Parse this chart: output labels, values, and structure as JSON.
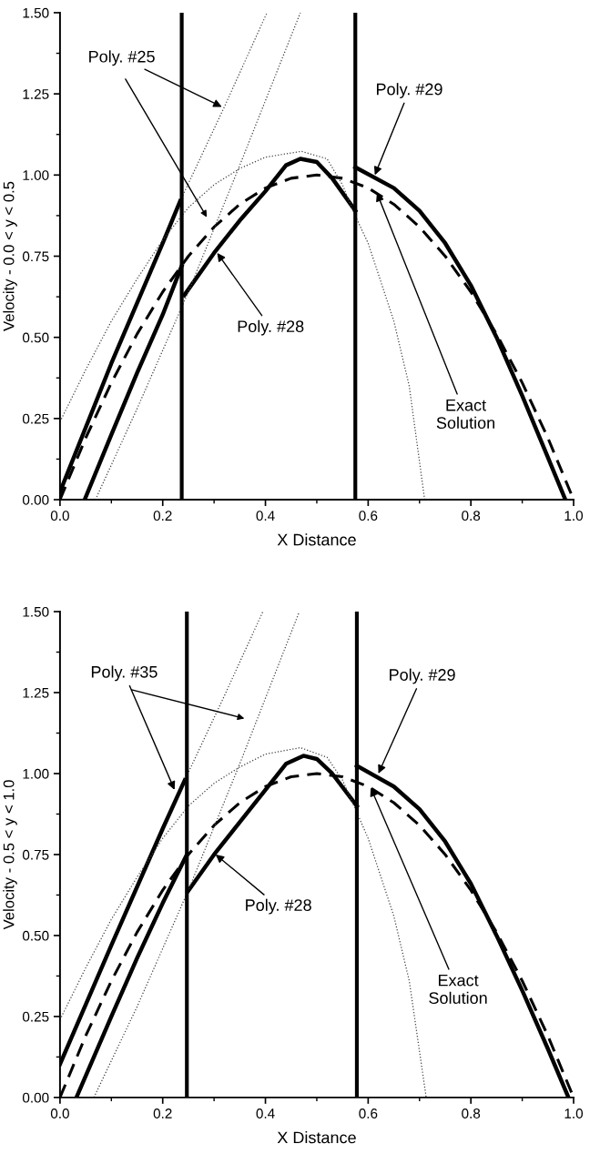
{
  "chart_data": [
    {
      "type": "line",
      "xlabel": "X Distance",
      "ylabel": "Velocity - 0.0 < y < 0.5",
      "xlim": [
        0,
        1
      ],
      "ylim": [
        0,
        1.5
      ],
      "xticks": [
        {
          "value": 0,
          "label": "0.0"
        },
        {
          "value": 0.2,
          "label": "0.2"
        },
        {
          "value": 0.4,
          "label": "0.4"
        },
        {
          "value": 0.6,
          "label": "0.6"
        },
        {
          "value": 0.8,
          "label": "0.8"
        },
        {
          "value": 1,
          "label": "1.0"
        }
      ],
      "yticks": [
        {
          "value": 0,
          "label": "0.00"
        },
        {
          "value": 0.25,
          "label": "0.25"
        },
        {
          "value": 0.5,
          "label": "0.50"
        },
        {
          "value": 0.75,
          "label": "0.75"
        },
        {
          "value": 1,
          "label": "1.00"
        },
        {
          "value": 1.25,
          "label": "1.25"
        },
        {
          "value": 1.5,
          "label": "1.50"
        }
      ],
      "grid": false,
      "legend": false,
      "marker": "none",
      "series": [
        {
          "color": "#000000",
          "line_style": "dashed",
          "x": [
            0,
            0.05,
            0.1,
            0.15,
            0.2,
            0.25,
            0.3,
            0.35,
            0.4,
            0.45,
            0.5,
            0.55,
            0.6,
            0.65,
            0.7,
            0.75,
            0.8,
            0.85,
            0.9,
            0.95,
            1
          ],
          "values": [
            0,
            0.19,
            0.36,
            0.51,
            0.64,
            0.75,
            0.84,
            0.91,
            0.96,
            0.99,
            1.0,
            0.99,
            0.96,
            0.91,
            0.84,
            0.75,
            0.64,
            0.51,
            0.36,
            0.19,
            0
          ]
        },
        {
          "color": "#000000",
          "line_style": "solid",
          "x": [
            0,
            0.1,
            0.2,
            0.234
          ],
          "values": [
            0.024,
            0.42,
            0.79,
            0.92
          ]
        },
        {
          "color": "#000000",
          "line_style": "solid",
          "x": [
            0.048,
            0.1,
            0.15,
            0.2,
            0.237
          ],
          "values": [
            0,
            0.2,
            0.39,
            0.57,
            0.72
          ]
        },
        {
          "color": "#000000",
          "line_style": "solid",
          "x": [
            0.242,
            0.3,
            0.35,
            0.4,
            0.44,
            0.468,
            0.5,
            0.53,
            0.575
          ],
          "values": [
            0.63,
            0.76,
            0.86,
            0.95,
            1.03,
            1.05,
            1.04,
            0.99,
            0.89
          ]
        },
        {
          "color": "#000000",
          "line_style": "solid",
          "x": [
            0.575,
            0.65,
            0.7,
            0.75,
            0.8,
            0.85,
            0.9,
            0.95,
            0.984
          ],
          "values": [
            1.024,
            0.96,
            0.89,
            0.79,
            0.66,
            0.5,
            0.32,
            0.13,
            0
          ]
        },
        {
          "color": "#444444",
          "line_style": "dotted",
          "x": [
            0.234,
            0.32,
            0.403
          ],
          "values": [
            0.92,
            1.21,
            1.5
          ]
        },
        {
          "color": "#444444",
          "line_style": "dotted",
          "x": [
            0.069,
            0.15,
            0.25,
            0.35,
            0.468
          ],
          "values": [
            0,
            0.28,
            0.64,
            1.03,
            1.5
          ]
        },
        {
          "color": "#444444",
          "line_style": "dotted",
          "x": [
            0,
            0.05,
            0.1,
            0.15,
            0.2,
            0.25,
            0.3,
            0.35,
            0.4,
            0.47,
            0.52,
            0.55,
            0.573,
            0.6,
            0.65,
            0.68,
            0.71
          ],
          "values": [
            0.24,
            0.4,
            0.55,
            0.68,
            0.8,
            0.9,
            0.97,
            1.02,
            1.055,
            1.073,
            1.05,
            0.97,
            0.88,
            0.79,
            0.55,
            0.35,
            0
          ]
        }
      ],
      "ref_lines": [
        {
          "axis": "x",
          "value": 0.237,
          "color": "#000000"
        },
        {
          "axis": "x",
          "value": 0.575,
          "color": "#000000"
        }
      ],
      "annotations": [
        {
          "text": "Poly. #25",
          "x": 0.315,
          "y": 1.21
        },
        {
          "text": "Poly. #29",
          "x": 0.613,
          "y": 1.0
        },
        {
          "text": "Poly. #28",
          "x": 0.306,
          "y": 0.76
        },
        {
          "text": "Exact\nSolution",
          "x": 0.617,
          "y": 0.945
        }
      ]
    },
    {
      "type": "line",
      "xlabel": "X Distance",
      "ylabel": "Velocity - 0.5 < y < 1.0",
      "xlim": [
        0,
        1
      ],
      "ylim": [
        0,
        1.5
      ],
      "xticks": [
        {
          "value": 0,
          "label": "0.0"
        },
        {
          "value": 0.2,
          "label": "0.2"
        },
        {
          "value": 0.4,
          "label": "0.4"
        },
        {
          "value": 0.6,
          "label": "0.6"
        },
        {
          "value": 0.8,
          "label": "0.8"
        },
        {
          "value": 1,
          "label": "1.0"
        }
      ],
      "yticks": [
        {
          "value": 0,
          "label": "0.00"
        },
        {
          "value": 0.25,
          "label": "0.25"
        },
        {
          "value": 0.5,
          "label": "0.50"
        },
        {
          "value": 0.75,
          "label": "0.75"
        },
        {
          "value": 1,
          "label": "1.00"
        },
        {
          "value": 1.25,
          "label": "1.25"
        },
        {
          "value": 1.5,
          "label": "1.50"
        }
      ],
      "grid": false,
      "legend": false,
      "marker": "none",
      "series": [
        {
          "color": "#000000",
          "line_style": "dashed",
          "x": [
            0,
            0.05,
            0.1,
            0.15,
            0.2,
            0.25,
            0.3,
            0.35,
            0.4,
            0.45,
            0.5,
            0.55,
            0.6,
            0.65,
            0.7,
            0.75,
            0.8,
            0.85,
            0.9,
            0.95,
            1
          ],
          "values": [
            0,
            0.19,
            0.36,
            0.51,
            0.64,
            0.75,
            0.84,
            0.91,
            0.96,
            0.99,
            1.0,
            0.99,
            0.96,
            0.91,
            0.84,
            0.75,
            0.64,
            0.51,
            0.36,
            0.19,
            0
          ]
        },
        {
          "color": "#000000",
          "line_style": "solid",
          "x": [
            0,
            0.1,
            0.2,
            0.243
          ],
          "values": [
            0.103,
            0.47,
            0.83,
            0.98
          ]
        },
        {
          "color": "#000000",
          "line_style": "solid",
          "x": [
            0.032,
            0.1,
            0.15,
            0.2,
            0.247
          ],
          "values": [
            0,
            0.25,
            0.43,
            0.6,
            0.75
          ]
        },
        {
          "color": "#000000",
          "line_style": "solid",
          "x": [
            0.249,
            0.3,
            0.35,
            0.4,
            0.44,
            0.474,
            0.5,
            0.53,
            0.578
          ],
          "values": [
            0.636,
            0.75,
            0.85,
            0.95,
            1.03,
            1.055,
            1.045,
            1.0,
            0.9
          ]
        },
        {
          "color": "#000000",
          "line_style": "solid",
          "x": [
            0.578,
            0.65,
            0.7,
            0.75,
            0.8,
            0.85,
            0.9,
            0.95,
            0.99
          ],
          "values": [
            1.024,
            0.96,
            0.89,
            0.79,
            0.66,
            0.5,
            0.33,
            0.15,
            0
          ]
        },
        {
          "color": "#444444",
          "line_style": "dotted",
          "x": [
            0.243,
            0.32,
            0.395
          ],
          "values": [
            0.98,
            1.24,
            1.5
          ]
        },
        {
          "color": "#444444",
          "line_style": "dotted",
          "x": [
            0.066,
            0.15,
            0.25,
            0.35,
            0.466
          ],
          "values": [
            0,
            0.28,
            0.64,
            1.03,
            1.5
          ]
        },
        {
          "color": "#444444",
          "line_style": "dotted",
          "x": [
            0,
            0.05,
            0.1,
            0.15,
            0.2,
            0.25,
            0.3,
            0.35,
            0.4,
            0.468,
            0.52,
            0.55,
            0.578,
            0.6,
            0.65,
            0.68,
            0.713
          ],
          "values": [
            0.24,
            0.4,
            0.55,
            0.68,
            0.8,
            0.9,
            0.97,
            1.02,
            1.06,
            1.08,
            1.05,
            0.98,
            0.88,
            0.8,
            0.56,
            0.36,
            0
          ]
        }
      ],
      "ref_lines": [
        {
          "axis": "x",
          "value": 0.247,
          "color": "#000000"
        },
        {
          "axis": "x",
          "value": 0.578,
          "color": "#000000"
        }
      ],
      "annotations": [
        {
          "text": "Poly. #35",
          "x": 0.223,
          "y": 0.95
        },
        {
          "text": "Poly. #29",
          "x": 0.62,
          "y": 1.0
        },
        {
          "text": "Poly. #28",
          "x": 0.303,
          "y": 0.75
        },
        {
          "text": "Exact\nSolution",
          "x": 0.605,
          "y": 0.956
        }
      ]
    }
  ]
}
